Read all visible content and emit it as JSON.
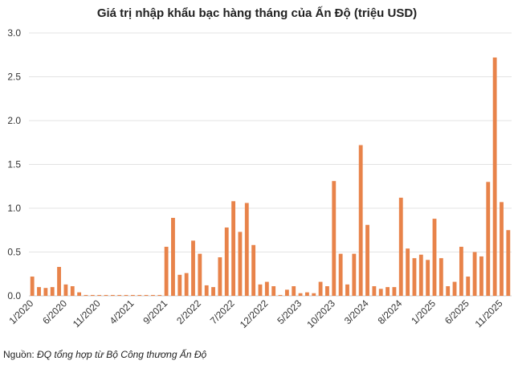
{
  "chart_data": {
    "type": "bar",
    "title": "Giá trị nhập khẩu bạc hàng tháng của Ấn Độ (triệu USD)",
    "xlabel": "",
    "ylabel": "",
    "ylim": [
      0,
      3.0
    ],
    "yticks": [
      "0.0",
      "0.5",
      "1.0",
      "1.5",
      "2.0",
      "2.5",
      "3.0"
    ],
    "grid": true,
    "bar_color": "#E8834A",
    "x_tick_labels": [
      "1/2020",
      "6/2020",
      "11/2020",
      "4/2021",
      "9/2021",
      "2/2022",
      "7/2022",
      "12/2022",
      "5/2023",
      "10/2023",
      "3/2024",
      "8/2024",
      "1/2025",
      "6/2025",
      "11/2025"
    ],
    "x_tick_every": 5,
    "categories": [
      "1/2020",
      "2/2020",
      "3/2020",
      "4/2020",
      "5/2020",
      "6/2020",
      "7/2020",
      "8/2020",
      "9/2020",
      "10/2020",
      "11/2020",
      "12/2020",
      "1/2021",
      "2/2021",
      "3/2021",
      "4/2021",
      "5/2021",
      "6/2021",
      "7/2021",
      "8/2021",
      "9/2021",
      "10/2021",
      "11/2021",
      "12/2021",
      "1/2022",
      "2/2022",
      "3/2022",
      "4/2022",
      "5/2022",
      "6/2022",
      "7/2022",
      "8/2022",
      "9/2022",
      "10/2022",
      "11/2022",
      "12/2022",
      "1/2023",
      "2/2023",
      "3/2023",
      "4/2023",
      "5/2023",
      "6/2023",
      "7/2023",
      "8/2023",
      "9/2023",
      "10/2023",
      "11/2023",
      "12/2023",
      "1/2024",
      "2/2024",
      "3/2024",
      "4/2024",
      "5/2024",
      "6/2024",
      "7/2024",
      "8/2024",
      "9/2024",
      "10/2024",
      "11/2024",
      "12/2024",
      "1/2025",
      "2/2025",
      "3/2025",
      "4/2025",
      "5/2025",
      "6/2025",
      "7/2025",
      "8/2025",
      "9/2025",
      "10/2025",
      "11/2025",
      "12/2025"
    ],
    "values": [
      0.22,
      0.1,
      0.09,
      0.1,
      0.33,
      0.13,
      0.11,
      0.04,
      0.01,
      0.01,
      0.01,
      0.01,
      0.01,
      0.01,
      0.01,
      0.01,
      0.01,
      0.01,
      0.01,
      0.01,
      0.56,
      0.89,
      0.24,
      0.26,
      0.63,
      0.48,
      0.12,
      0.1,
      0.44,
      0.78,
      1.08,
      0.73,
      1.06,
      0.58,
      0.13,
      0.16,
      0.11,
      0.01,
      0.07,
      0.11,
      0.03,
      0.04,
      0.03,
      0.16,
      0.11,
      1.31,
      0.48,
      0.13,
      0.48,
      1.72,
      0.81,
      0.11,
      0.08,
      0.1,
      0.1,
      1.12,
      0.54,
      0.43,
      0.47,
      0.41,
      0.88,
      0.43,
      0.11,
      0.16,
      0.56,
      0.22,
      0.5,
      0.45,
      1.3,
      2.72,
      1.07,
      0.75
    ]
  },
  "source": {
    "label": "Nguồn:",
    "text": "ĐQ tổng hợp từ Bộ Công thương Ấn Độ"
  }
}
